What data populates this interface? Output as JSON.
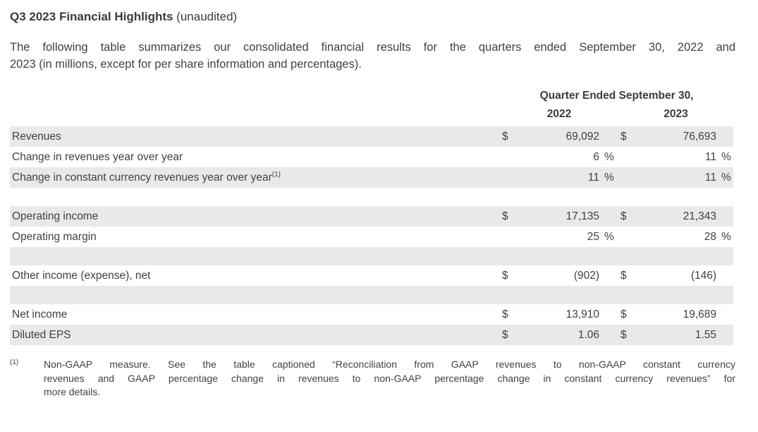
{
  "doc": {
    "title": {
      "main": "Q3 2023 Financial Highlights",
      "suffix": " (unaudited)"
    },
    "intro_lines": [
      "The following table summarizes our consolidated financial results for the quarters ended September 30, 2022 and",
      "2023 (in millions, except for per share information and percentages)."
    ]
  },
  "table": {
    "header": {
      "group_label": "Quarter Ended September 30,",
      "col_2022": "2022",
      "col_2023": "2023"
    },
    "rows": [
      {
        "label": "Revenues",
        "sup": "",
        "shaded": true,
        "spacer": false,
        "cols": [
          {
            "cur": "$",
            "val": "69,092",
            "suf": ""
          },
          {
            "cur": "$",
            "val": "76,693",
            "suf": ""
          }
        ]
      },
      {
        "label": "Change in revenues year over year",
        "sup": "",
        "shaded": false,
        "spacer": false,
        "cols": [
          {
            "cur": "",
            "val": "6",
            "suf": "%"
          },
          {
            "cur": "",
            "val": "11",
            "suf": "%"
          }
        ]
      },
      {
        "label": "Change in constant currency revenues year over year",
        "sup": "(1)",
        "shaded": true,
        "spacer": false,
        "cols": [
          {
            "cur": "",
            "val": "11",
            "suf": "%"
          },
          {
            "cur": "",
            "val": "11",
            "suf": "%"
          }
        ]
      },
      {
        "label": "",
        "sup": "",
        "shaded": false,
        "spacer": true,
        "cols": []
      },
      {
        "label": "Operating income",
        "sup": "",
        "shaded": true,
        "spacer": false,
        "cols": [
          {
            "cur": "$",
            "val": "17,135",
            "suf": ""
          },
          {
            "cur": "$",
            "val": "21,343",
            "suf": ""
          }
        ]
      },
      {
        "label": "Operating margin",
        "sup": "",
        "shaded": false,
        "spacer": false,
        "cols": [
          {
            "cur": "",
            "val": "25",
            "suf": "%"
          },
          {
            "cur": "",
            "val": "28",
            "suf": "%"
          }
        ]
      },
      {
        "label": "",
        "sup": "",
        "shaded": true,
        "spacer": true,
        "cols": []
      },
      {
        "label": "Other income (expense), net",
        "sup": "",
        "shaded": false,
        "spacer": false,
        "cols": [
          {
            "cur": "$",
            "val": "(902)",
            "suf": ""
          },
          {
            "cur": "$",
            "val": "(146)",
            "suf": ""
          }
        ]
      },
      {
        "label": "",
        "sup": "",
        "shaded": true,
        "spacer": true,
        "cols": []
      },
      {
        "label": "Net income",
        "sup": "",
        "shaded": false,
        "spacer": false,
        "cols": [
          {
            "cur": "$",
            "val": "13,910",
            "suf": ""
          },
          {
            "cur": "$",
            "val": "19,689",
            "suf": ""
          }
        ]
      },
      {
        "label": "Diluted EPS",
        "sup": "",
        "shaded": true,
        "spacer": false,
        "cols": [
          {
            "cur": "$",
            "val": "1.06",
            "suf": ""
          },
          {
            "cur": "$",
            "val": "1.55",
            "suf": ""
          }
        ]
      }
    ]
  },
  "footnote": {
    "marker": "(1)",
    "lines": [
      "Non-GAAP measure. See the table captioned “Reconciliation from GAAP revenues to non-GAAP constant currency",
      "revenues and GAAP percentage change in revenues to non-GAAP percentage change in constant currency revenues” for",
      "more details."
    ]
  },
  "colors": {
    "row_shading": "#e8e9eb",
    "text": "#3f4245"
  }
}
